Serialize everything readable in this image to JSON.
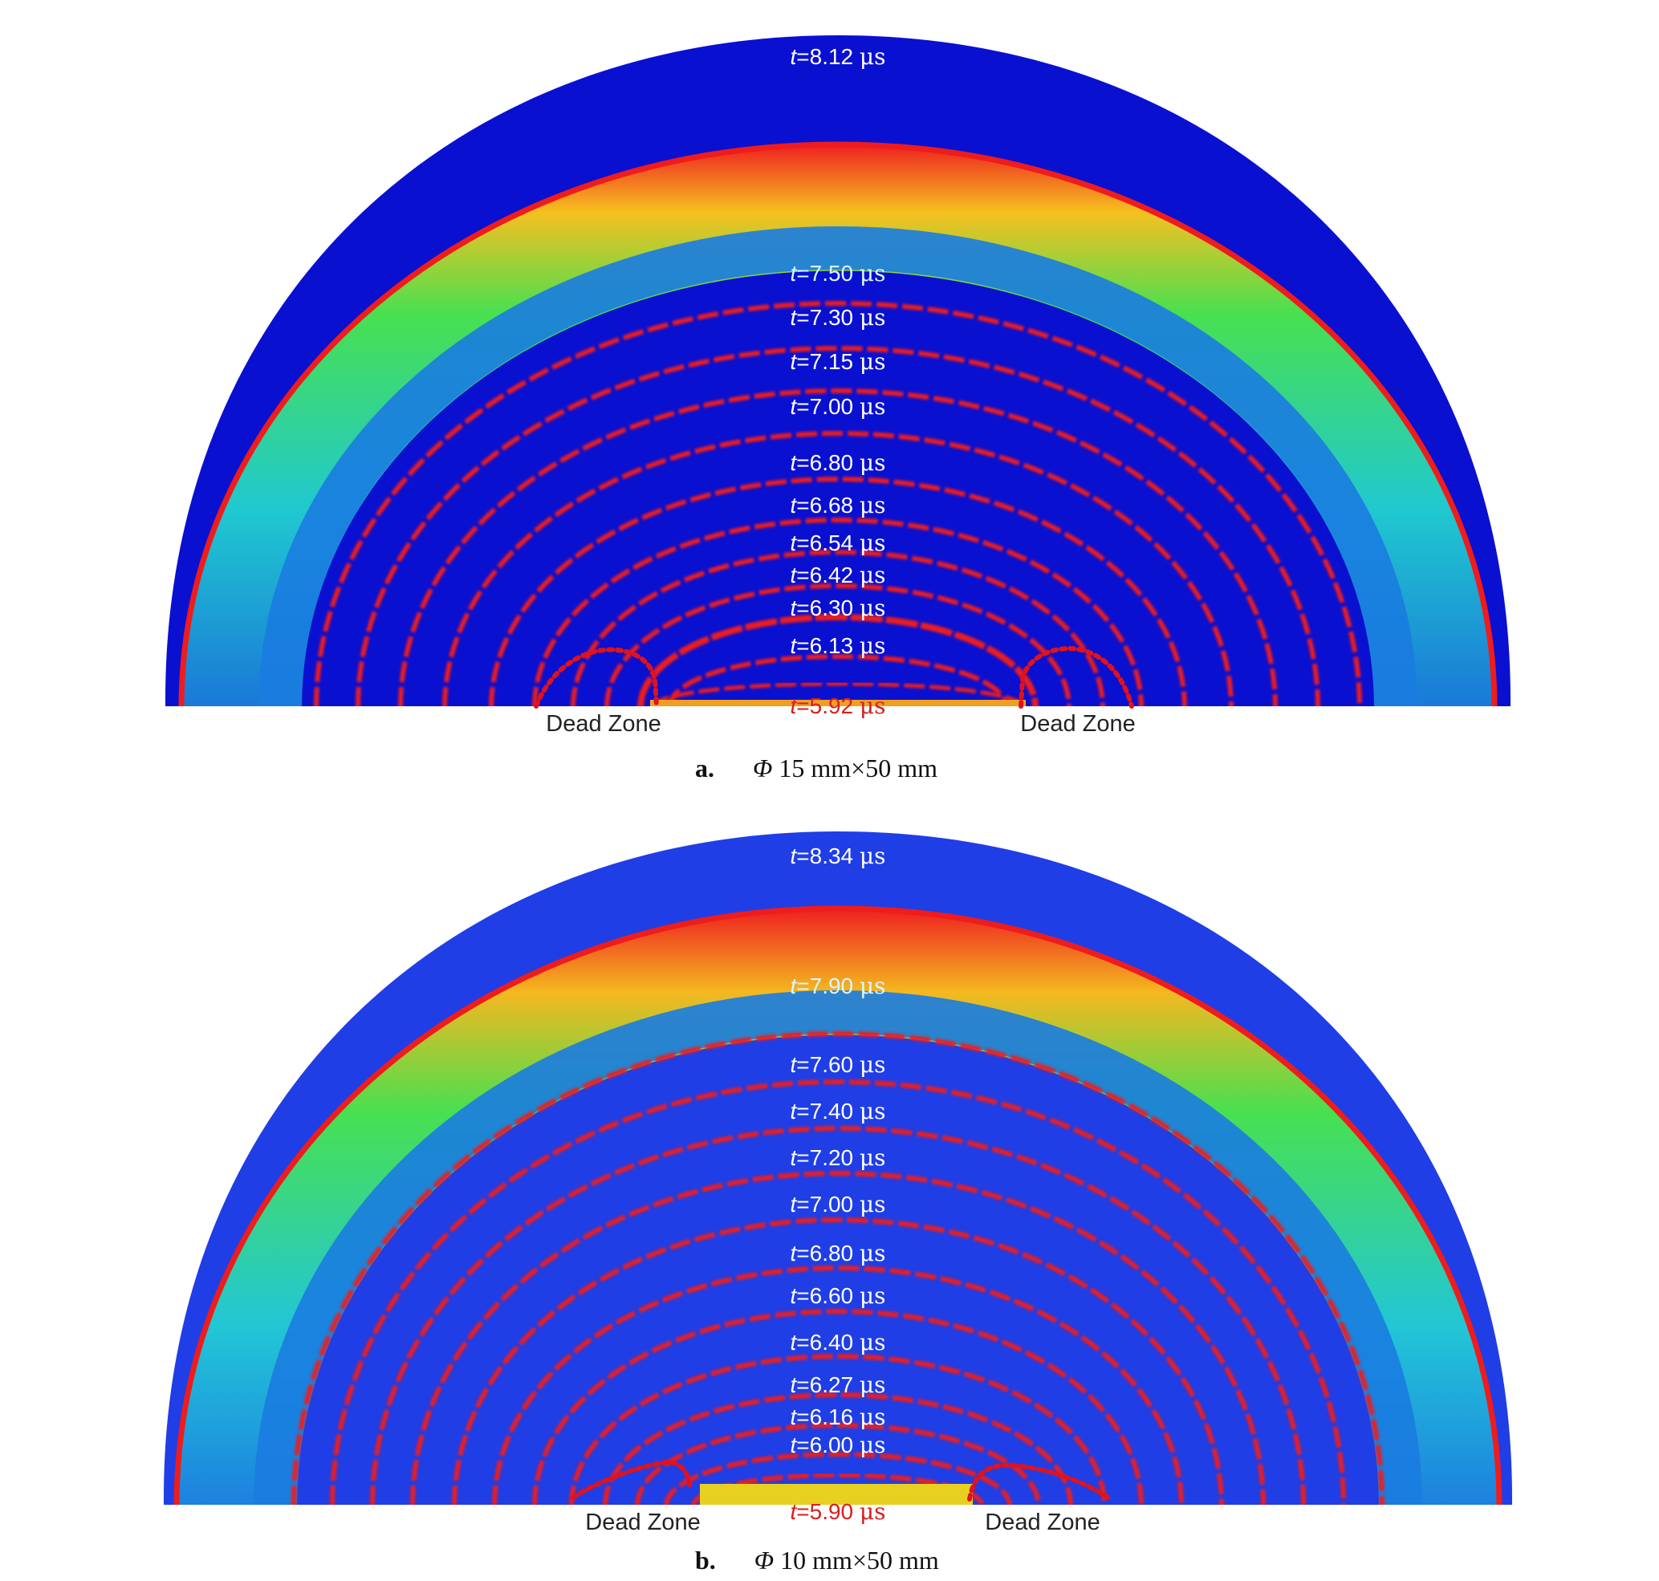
{
  "panels": [
    {
      "id": "a",
      "caption_letter": "a.",
      "caption_phi": "Φ",
      "caption_text": "15 mm×50 mm",
      "time_labels": [
        {
          "t": "8.12",
          "unit": "μs"
        },
        {
          "t": "7.50",
          "unit": "μs"
        },
        {
          "t": "7.30",
          "unit": "μs"
        },
        {
          "t": "7.15",
          "unit": "μs"
        },
        {
          "t": "7.00",
          "unit": "μs"
        },
        {
          "t": "6.80",
          "unit": "μs"
        },
        {
          "t": "6.68",
          "unit": "μs"
        },
        {
          "t": "6.54",
          "unit": "μs"
        },
        {
          "t": "6.42",
          "unit": "μs"
        },
        {
          "t": "6.30",
          "unit": "μs"
        },
        {
          "t": "6.13",
          "unit": "μs"
        },
        {
          "t": "5.92",
          "unit": "μs"
        }
      ],
      "dead_zone_left": "Dead Zone",
      "dead_zone_right": "Dead Zone"
    },
    {
      "id": "b",
      "caption_letter": "b.",
      "caption_phi": "Φ",
      "caption_text": "10 mm×50 mm",
      "time_labels": [
        {
          "t": "8.34",
          "unit": "μs"
        },
        {
          "t": "7.90",
          "unit": "μs"
        },
        {
          "t": "7.60",
          "unit": "μs"
        },
        {
          "t": "7.40",
          "unit": "μs"
        },
        {
          "t": "7.20",
          "unit": "μs"
        },
        {
          "t": "7.00",
          "unit": "μs"
        },
        {
          "t": "6.80",
          "unit": "μs"
        },
        {
          "t": "6.60",
          "unit": "μs"
        },
        {
          "t": "6.40",
          "unit": "μs"
        },
        {
          "t": "6.27",
          "unit": "μs"
        },
        {
          "t": "6.16",
          "unit": "μs"
        },
        {
          "t": "6.00",
          "unit": "μs"
        },
        {
          "t": "5.90",
          "unit": "μs"
        }
      ],
      "dead_zone_left": "Dead Zone",
      "dead_zone_right": "Dead Zone"
    }
  ],
  "colors": {
    "background_a": "#0a10d0",
    "background_b": "#1f3ee6",
    "front": "#ee1c1c",
    "band_green": "#3ce05a",
    "band_cyan": "#22c8d8",
    "band_mid": "#1a7ce0",
    "dead_zone_outline": "#e0121c",
    "label_white": "#ffffff",
    "label_red": "#d81e1e"
  }
}
